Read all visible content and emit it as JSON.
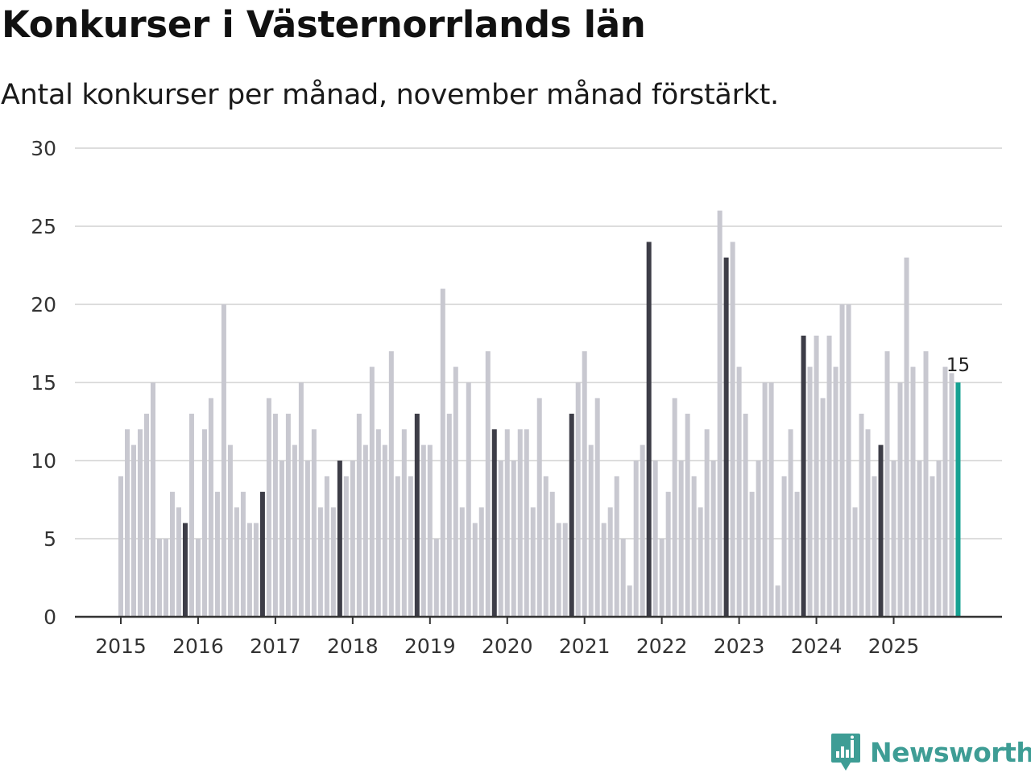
{
  "header": {
    "title": "Konkurser i Västernorrlands län",
    "subtitle": "Antal konkurser per månad, november månad förstärkt."
  },
  "brand": {
    "name": "Newsworthy",
    "icon": "newsworthy-logo-icon",
    "color": "#3e9d95"
  },
  "colors": {
    "normal": "#c8c8d0",
    "november": "#3d3d47",
    "latest": "#16a192",
    "grid": "#dddddd",
    "axis": "#333333"
  },
  "chart_data": {
    "type": "bar",
    "title": "Konkurser i Västernorrlands län",
    "subtitle": "Antal konkurser per månad, november månad förstärkt.",
    "xlabel": "",
    "ylabel": "",
    "ylim": [
      0,
      30
    ],
    "yticks": [
      0,
      5,
      10,
      15,
      20,
      25,
      30
    ],
    "xticks": [
      "2015",
      "2016",
      "2017",
      "2018",
      "2019",
      "2020",
      "2021",
      "2022",
      "2023",
      "2024",
      "2025"
    ],
    "grid": true,
    "start": "2015-01",
    "highlight_month": "november",
    "annotation": {
      "label": "15",
      "target": "2025-11"
    },
    "values": [
      9,
      12,
      11,
      12,
      13,
      15,
      5,
      5,
      8,
      7,
      6,
      13,
      5,
      12,
      14,
      8,
      20,
      11,
      7,
      8,
      6,
      6,
      8,
      14,
      13,
      10,
      13,
      11,
      15,
      10,
      12,
      7,
      9,
      7,
      10,
      9,
      10,
      13,
      11,
      16,
      12,
      11,
      17,
      9,
      12,
      9,
      13,
      11,
      11,
      5,
      21,
      13,
      16,
      7,
      15,
      6,
      7,
      17,
      12,
      10,
      12,
      10,
      12,
      12,
      7,
      14,
      9,
      8,
      6,
      6,
      13,
      15,
      17,
      11,
      14,
      6,
      7,
      9,
      5,
      2,
      10,
      11,
      24,
      10,
      5,
      8,
      14,
      10,
      13,
      9,
      7,
      12,
      10,
      26,
      23,
      24,
      16,
      13,
      8,
      10,
      15,
      15,
      2,
      9,
      12,
      8,
      18,
      16,
      18,
      14,
      18,
      16,
      20,
      20,
      7,
      13,
      12,
      9,
      11,
      17,
      10,
      15,
      23,
      16,
      10,
      17,
      9,
      10,
      16,
      15.6,
      15
    ]
  }
}
